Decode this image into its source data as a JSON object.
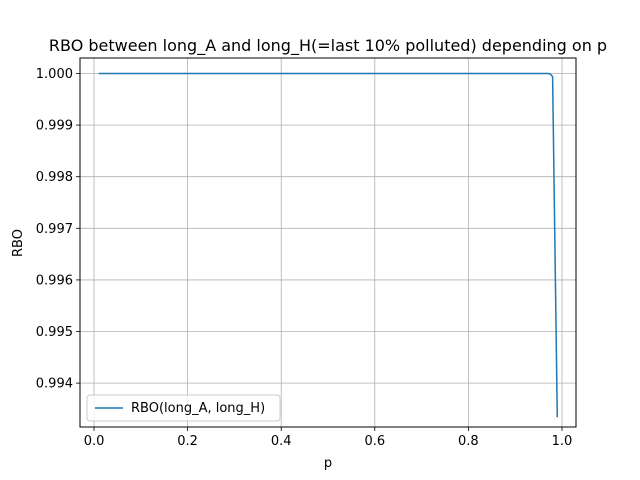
{
  "chart_data": {
    "type": "line",
    "title": "RBO between long_A and long_H(=last 10% polluted) depending on p",
    "xlabel": "p",
    "ylabel": "RBO",
    "xlim": [
      -0.03,
      1.03
    ],
    "ylim": [
      0.99315,
      1.0003
    ],
    "xticks": [
      0.0,
      0.2,
      0.4,
      0.6,
      0.8,
      1.0
    ],
    "xtick_labels": [
      "0.0",
      "0.2",
      "0.4",
      "0.6",
      "0.8",
      "1.0"
    ],
    "yticks": [
      0.994,
      0.995,
      0.996,
      0.997,
      0.998,
      0.999,
      1.0
    ],
    "ytick_labels": [
      "0.994",
      "0.995",
      "0.996",
      "0.997",
      "0.998",
      "0.999",
      "1.000"
    ],
    "grid": true,
    "legend_position": "lower-left",
    "series": [
      {
        "name": "RBO(long_A, long_H)",
        "color": "#1f77b4",
        "x": [
          0.01,
          0.1,
          0.2,
          0.3,
          0.4,
          0.5,
          0.6,
          0.7,
          0.8,
          0.9,
          0.95,
          0.96,
          0.97,
          0.975,
          0.98,
          0.99
        ],
        "y": [
          1.0,
          1.0,
          1.0,
          1.0,
          1.0,
          1.0,
          1.0,
          1.0,
          1.0,
          1.0,
          1.0,
          1.0,
          1.0,
          0.99999,
          0.99994,
          0.99334
        ]
      }
    ]
  }
}
